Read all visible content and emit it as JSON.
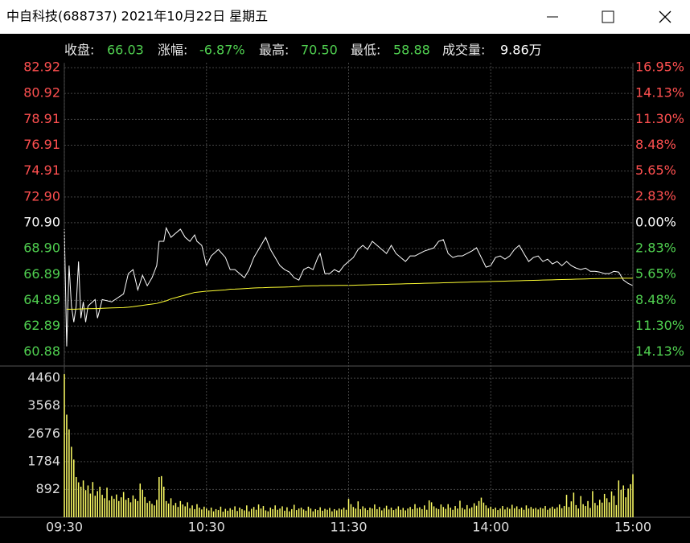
{
  "window": {
    "title": "中自科技(688737)  2021年10月22日  星期五",
    "info": [
      {
        "label": "收盘:",
        "value": "66.03"
      },
      {
        "label": "涨幅:",
        "value": "-6.87%"
      },
      {
        "label": "最高:",
        "value": "70.50"
      },
      {
        "label": "最低:",
        "value": "58.88"
      },
      {
        "label": "成交量:",
        "value": "9.86万"
      }
    ]
  },
  "chart_data": [
    {
      "type": "line",
      "x": [
        0,
        1,
        2,
        3,
        4,
        5,
        6,
        7,
        8,
        9,
        10,
        13,
        14,
        16,
        20,
        25,
        27,
        29,
        31,
        33,
        35,
        37,
        39,
        40,
        42,
        43,
        45,
        47,
        49,
        51,
        53,
        55,
        56,
        58,
        60,
        62,
        65,
        68,
        70,
        72,
        74,
        76,
        78,
        80,
        82,
        84,
        85,
        87,
        89,
        91,
        93,
        95,
        97,
        99,
        101,
        103,
        105,
        107,
        108,
        110,
        112,
        114,
        116,
        118,
        120,
        122,
        124,
        126,
        128,
        130,
        132,
        134,
        136,
        138,
        140,
        142,
        144,
        146,
        148,
        150,
        152,
        154,
        156,
        158,
        160,
        162,
        164,
        166,
        168,
        170,
        172,
        174,
        176,
        178,
        180,
        182,
        184,
        186,
        188,
        190,
        192,
        194,
        196,
        198,
        200,
        202,
        204,
        206,
        208,
        210,
        212,
        214,
        216,
        218,
        220,
        222,
        224,
        226,
        228,
        230,
        232,
        234,
        236,
        238,
        240
      ],
      "series": [
        {
          "color": "#ffffff",
          "values": [
            70.4,
            61.32,
            67.58,
            64.45,
            63.2,
            64.45,
            67.9,
            63.51,
            64.77,
            63.2,
            64.45,
            64.95,
            63.51,
            64.95,
            64.77,
            65.39,
            66.96,
            67.27,
            65.7,
            66.83,
            66.02,
            66.64,
            67.58,
            69.46,
            69.46,
            70.5,
            69.77,
            70.09,
            70.4,
            69.77,
            69.46,
            69.96,
            69.46,
            69.15,
            67.58,
            68.33,
            68.83,
            68.21,
            67.27,
            67.27,
            66.96,
            66.64,
            67.27,
            68.21,
            68.83,
            69.46,
            69.77,
            68.83,
            68.21,
            67.58,
            67.27,
            67.08,
            66.64,
            66.46,
            67.27,
            67.46,
            67.27,
            68.21,
            68.52,
            66.96,
            66.96,
            67.27,
            67.08,
            67.58,
            67.9,
            68.21,
            68.83,
            69.15,
            68.83,
            69.46,
            69.15,
            68.83,
            68.52,
            69.15,
            68.52,
            68.21,
            67.9,
            68.33,
            68.33,
            68.52,
            68.71,
            68.83,
            68.96,
            69.46,
            69.59,
            68.52,
            68.21,
            68.33,
            68.33,
            68.52,
            68.71,
            68.96,
            68.21,
            67.46,
            67.58,
            68.21,
            68.33,
            68.08,
            68.33,
            68.83,
            69.15,
            68.52,
            67.9,
            68.21,
            68.33,
            67.9,
            68.08,
            67.71,
            67.9,
            67.58,
            67.9,
            67.58,
            67.39,
            67.27,
            67.39,
            67.14,
            67.14,
            67.08,
            66.96,
            66.96,
            67.14,
            67.08,
            66.46,
            66.2,
            66.03
          ]
        },
        {
          "color": "#ffff33",
          "values": [
            null,
            64.2,
            64.2,
            64.2,
            64.2,
            64.2,
            64.22,
            64.22,
            64.23,
            64.23,
            64.24,
            64.25,
            64.25,
            64.27,
            64.3,
            64.33,
            64.36,
            64.4,
            64.45,
            64.5,
            64.55,
            64.6,
            64.65,
            64.7,
            64.8,
            64.85,
            65.0,
            65.1,
            65.2,
            65.3,
            65.4,
            65.5,
            65.52,
            65.56,
            65.6,
            65.62,
            65.66,
            65.7,
            65.75,
            65.76,
            65.78,
            65.8,
            65.82,
            65.85,
            65.86,
            65.87,
            65.88,
            65.89,
            65.9,
            65.91,
            65.92,
            65.93,
            65.95,
            65.97,
            66.0,
            66.01,
            66.02,
            66.02,
            66.03,
            66.03,
            66.04,
            66.04,
            66.05,
            66.05,
            66.05,
            66.06,
            66.07,
            66.08,
            66.09,
            66.1,
            66.11,
            66.12,
            66.13,
            66.14,
            66.15,
            66.16,
            66.17,
            66.18,
            66.19,
            66.2,
            66.21,
            66.22,
            66.23,
            66.24,
            66.25,
            66.26,
            66.27,
            66.28,
            66.29,
            66.3,
            66.31,
            66.32,
            66.33,
            66.34,
            66.35,
            66.36,
            66.37,
            66.38,
            66.39,
            66.4,
            66.41,
            66.42,
            66.43,
            66.44,
            66.45,
            66.46,
            66.47,
            66.48,
            66.49,
            66.5,
            66.51,
            66.52,
            66.53,
            66.54,
            66.55,
            66.56,
            66.57,
            66.58,
            66.58,
            66.59,
            66.59,
            66.6,
            66.6,
            66.6,
            66.6
          ]
        }
      ],
      "xlim": [
        0,
        240
      ],
      "ylim": [
        59.8,
        83.3
      ],
      "yticks": [
        82.92,
        80.92,
        78.91,
        76.91,
        74.91,
        {
          "value": 72.9,
          "label": "72.90"
        },
        {
          "value": 70.9,
          "label": "70.90"
        },
        {
          "value": 68.9,
          "label": "68.90"
        },
        66.89,
        64.89,
        62.89,
        60.88
      ],
      "y2lim": [
        -15.66,
        17.49
      ],
      "y2ticks": [
        {
          "value": 16.95,
          "label": "16.95%"
        },
        {
          "value": 14.13,
          "label": "14.13%"
        },
        {
          "value": 11.3,
          "label": "11.30%"
        },
        {
          "value": 8.48,
          "label": "8.48%"
        },
        {
          "value": 5.65,
          "label": "5.65%"
        },
        {
          "value": 2.83,
          "label": "2.83%"
        },
        {
          "value": 0,
          "label": "0.00%"
        },
        {
          "value": -2.83,
          "label": "2.83%"
        },
        {
          "value": -5.65,
          "label": "5.65%"
        },
        {
          "value": -8.48,
          "label": "8.48%"
        },
        {
          "value": -11.3,
          "label": "11.30%"
        },
        {
          "value": -14.13,
          "label": "14.13%"
        }
      ],
      "up_color": "#ff5050",
      "down_color": "#50d050",
      "flat_color": "#ffffff",
      "grid": true
    },
    {
      "type": "bar",
      "x": [
        0,
        1,
        2,
        3,
        4,
        5,
        6,
        7,
        8,
        9,
        10,
        11,
        12,
        13,
        14,
        15,
        16,
        17,
        18,
        19,
        20,
        21,
        22,
        23,
        24,
        25,
        26,
        27,
        28,
        29,
        30,
        31,
        32,
        33,
        34,
        35,
        36,
        37,
        38,
        39,
        40,
        41,
        42,
        43,
        44,
        45,
        46,
        47,
        48,
        49,
        50,
        51,
        52,
        53,
        54,
        55,
        56,
        57,
        58,
        59,
        60,
        61,
        62,
        63,
        64,
        65,
        66,
        67,
        68,
        69,
        70,
        71,
        72,
        73,
        74,
        75,
        76,
        77,
        78,
        79,
        80,
        81,
        82,
        83,
        84,
        85,
        86,
        87,
        88,
        89,
        90,
        91,
        92,
        93,
        94,
        95,
        96,
        97,
        98,
        99,
        100,
        101,
        102,
        103,
        104,
        105,
        106,
        107,
        108,
        109,
        110,
        111,
        112,
        113,
        114,
        115,
        116,
        117,
        118,
        119,
        120,
        121,
        122,
        123,
        124,
        125,
        126,
        127,
        128,
        129,
        130,
        131,
        132,
        133,
        134,
        135,
        136,
        137,
        138,
        139,
        140,
        141,
        142,
        143,
        144,
        145,
        146,
        147,
        148,
        149,
        150,
        151,
        152,
        153,
        154,
        155,
        156,
        157,
        158,
        159,
        160,
        161,
        162,
        163,
        164,
        165,
        166,
        167,
        168,
        169,
        170,
        171,
        172,
        173,
        174,
        175,
        176,
        177,
        178,
        179,
        180,
        181,
        182,
        183,
        184,
        185,
        186,
        187,
        188,
        189,
        190,
        191,
        192,
        193,
        194,
        195,
        196,
        197,
        198,
        199,
        200,
        201,
        202,
        203,
        204,
        205,
        206,
        207,
        208,
        209,
        210,
        211,
        212,
        213,
        214,
        215,
        216,
        217,
        218,
        219,
        220,
        221,
        222,
        223,
        224,
        225,
        226,
        227,
        228,
        229,
        230,
        231,
        232,
        233,
        234,
        235,
        236,
        237,
        238,
        239,
        240
      ],
      "values": [
        4590,
        3290,
        2820,
        2260,
        1850,
        1290,
        1120,
        980,
        1180,
        870,
        1020,
        760,
        1130,
        690,
        840,
        980,
        720,
        610,
        950,
        540,
        680,
        590,
        730,
        520,
        640,
        810,
        560,
        620,
        480,
        700,
        590,
        520,
        1080,
        880,
        650,
        460,
        520,
        430,
        380,
        560,
        1290,
        1320,
        980,
        520,
        440,
        610,
        380,
        460,
        330,
        520,
        410,
        350,
        480,
        290,
        380,
        260,
        420,
        310,
        250,
        340,
        280,
        220,
        310,
        190,
        260,
        230,
        340,
        180,
        270,
        210,
        290,
        240,
        350,
        200,
        310,
        260,
        220,
        380,
        190,
        270,
        330,
        240,
        410,
        280,
        360,
        220,
        190,
        310,
        260,
        380,
        240,
        280,
        350,
        210,
        320,
        190,
        260,
        400,
        230,
        280,
        310,
        250,
        210,
        340,
        280,
        190,
        260,
        230,
        320,
        210,
        270,
        240,
        300,
        190,
        260,
        220,
        280,
        250,
        310,
        240,
        590,
        420,
        330,
        280,
        510,
        260,
        350,
        290,
        230,
        310,
        280,
        410,
        260,
        330,
        220,
        290,
        370,
        250,
        310,
        230,
        270,
        350,
        240,
        300,
        220,
        280,
        330,
        260,
        420,
        290,
        320,
        260,
        380,
        240,
        540,
        480,
        350,
        290,
        260,
        410,
        330,
        270,
        420,
        310,
        240,
        360,
        280,
        530,
        300,
        250,
        390,
        280,
        320,
        450,
        370,
        520,
        630,
        470,
        380,
        290,
        340,
        260,
        310,
        230,
        280,
        360,
        250,
        320,
        270,
        400,
        290,
        350,
        260,
        310,
        240,
        380,
        280,
        330,
        270,
        300,
        250,
        310,
        280,
        360,
        240,
        290,
        340,
        270,
        320,
        410,
        290,
        360,
        720,
        330,
        510,
        790,
        390,
        280,
        680,
        420,
        360,
        520,
        300,
        840,
        460,
        380,
        560,
        470,
        750,
        610,
        480,
        830,
        690,
        390,
        1180,
        880,
        1020,
        640,
        920,
        1060,
        1380
      ],
      "color": "#ffff66",
      "xlim": [
        0,
        240
      ],
      "xticks": [
        {
          "value": 0,
          "label": "09:30"
        },
        {
          "value": 60,
          "label": "10:30"
        },
        {
          "value": 120,
          "label": "11:30"
        },
        {
          "value": 180,
          "label": "14:00"
        },
        {
          "value": 240,
          "label": "15:00"
        }
      ],
      "ylim": [
        0,
        4850
      ],
      "yticks": [
        892,
        1784,
        2676,
        3568,
        4460
      ],
      "grid": true
    }
  ]
}
